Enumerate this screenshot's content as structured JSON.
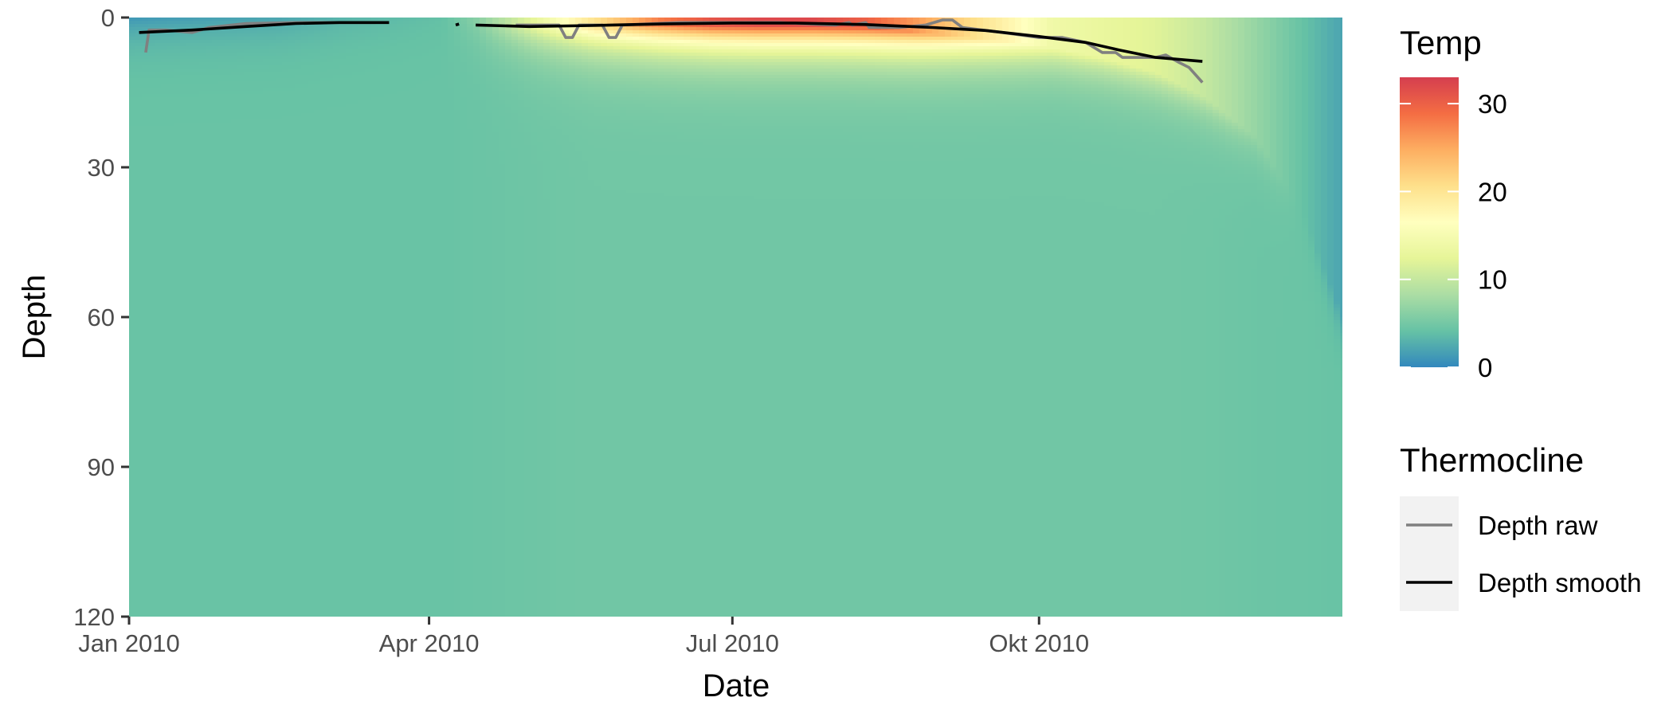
{
  "chart_data": {
    "type": "heatmap",
    "xlabel": "Date",
    "ylabel": "Depth",
    "x_ticks": [
      {
        "date": "2010-01-01",
        "label": "Jan 2010"
      },
      {
        "date": "2010-04-01",
        "label": "Apr 2010"
      },
      {
        "date": "2010-07-01",
        "label": "Jul 2010"
      },
      {
        "date": "2010-10-01",
        "label": "Okt 2010"
      }
    ],
    "xlim": [
      "2010-01-01",
      "2010-12-31"
    ],
    "y_ticks": [
      0,
      30,
      60,
      90,
      120
    ],
    "ylim": [
      0,
      120
    ],
    "y_reversed": true,
    "grid": false,
    "color_scale": {
      "title": "Temp",
      "ticks": [
        0,
        10,
        20,
        30
      ],
      "range": [
        0,
        33
      ],
      "palette": "Spectral (reversed)",
      "stops": [
        "#3288bd",
        "#66c2a5",
        "#abdda4",
        "#e6f598",
        "#ffffbf",
        "#fee08b",
        "#fdae61",
        "#f46d43",
        "#d53e4f"
      ]
    },
    "temperature_profile": {
      "dates": [
        "2010-01-01",
        "2010-01-20",
        "2010-02-15",
        "2010-03-05",
        "2010-03-20",
        "2010-04-05",
        "2010-04-15",
        "2010-05-01",
        "2010-05-20",
        "2010-06-10",
        "2010-06-25",
        "2010-07-10",
        "2010-07-25",
        "2010-08-10",
        "2010-08-25",
        "2010-09-10",
        "2010-09-25",
        "2010-10-05",
        "2010-10-20",
        "2010-11-05",
        "2010-11-20",
        "2010-12-05",
        "2010-12-20",
        "2010-12-31"
      ],
      "surface_temp": [
        1,
        1.5,
        2,
        3,
        3.5,
        4,
        6,
        12,
        20,
        28,
        31,
        32,
        32,
        30,
        26,
        21,
        17,
        14,
        13,
        12,
        10,
        7,
        4,
        2
      ],
      "deep_temp": [
        4.3,
        4.3,
        4.3,
        4.3,
        4.3,
        4.3,
        4.4,
        4.6,
        4.8,
        4.8,
        4.8,
        4.8,
        4.8,
        4.8,
        4.8,
        4.8,
        4.8,
        4.8,
        4.8,
        4.8,
        4.7,
        4.5,
        4.4,
        4.3
      ],
      "mixed_depth": [
        0,
        0,
        0,
        0,
        0,
        0,
        1,
        2,
        2,
        1.5,
        1.5,
        1.5,
        1.5,
        2,
        3,
        4,
        5,
        6,
        8,
        11,
        16,
        24,
        40,
        60
      ]
    },
    "series": [
      {
        "name": "Depth raw",
        "color": "#808080",
        "segments": [
          [
            [
              "2010-01-06",
              7
            ],
            [
              "2010-01-07",
              2.5
            ],
            [
              "2010-01-12",
              2.5
            ],
            [
              "2010-01-20",
              3
            ],
            [
              "2010-01-25",
              2
            ],
            [
              "2010-02-05",
              1.2
            ],
            [
              "2010-02-20",
              1
            ],
            [
              "2010-03-01",
              1
            ],
            [
              "2010-03-16",
              1
            ]
          ],
          [
            [
              "2010-04-27",
              1.5
            ],
            [
              "2010-05-10",
              1.5
            ],
            [
              "2010-05-12",
              4
            ],
            [
              "2010-05-14",
              4
            ],
            [
              "2010-05-16",
              1.5
            ],
            [
              "2010-05-23",
              1.5
            ],
            [
              "2010-05-25",
              4
            ],
            [
              "2010-05-27",
              4
            ],
            [
              "2010-05-29",
              1.5
            ],
            [
              "2010-06-15",
              1
            ],
            [
              "2010-07-15",
              1
            ],
            [
              "2010-08-01",
              1.5
            ],
            [
              "2010-08-05",
              1
            ],
            [
              "2010-08-06",
              1.5
            ],
            [
              "2010-08-10",
              1
            ],
            [
              "2010-08-11",
              2
            ],
            [
              "2010-08-20",
              2
            ],
            [
              "2010-08-28",
              1.5
            ],
            [
              "2010-09-02",
              0.5
            ],
            [
              "2010-09-05",
              0.5
            ],
            [
              "2010-09-08",
              2
            ],
            [
              "2010-09-20",
              3
            ],
            [
              "2010-10-01",
              4
            ],
            [
              "2010-10-08",
              4
            ],
            [
              "2010-10-15",
              5
            ],
            [
              "2010-10-20",
              7
            ],
            [
              "2010-10-24",
              7
            ],
            [
              "2010-10-26",
              8
            ],
            [
              "2010-11-05",
              8
            ],
            [
              "2010-11-08",
              7.5
            ],
            [
              "2010-11-12",
              9
            ],
            [
              "2010-11-15",
              10
            ],
            [
              "2010-11-19",
              13
            ]
          ]
        ]
      },
      {
        "name": "Depth smooth",
        "color": "#000000",
        "segments": [
          [
            [
              "2010-01-04",
              3
            ],
            [
              "2010-01-20",
              2.5
            ],
            [
              "2010-02-05",
              1.8
            ],
            [
              "2010-02-20",
              1.2
            ],
            [
              "2010-03-05",
              1
            ],
            [
              "2010-03-20",
              1
            ]
          ],
          [
            [
              "2010-04-09",
              1.5
            ],
            [
              "2010-04-10",
              1.3
            ]
          ],
          [
            [
              "2010-04-15",
              1.5
            ],
            [
              "2010-05-01",
              1.8
            ],
            [
              "2010-05-20",
              1.6
            ],
            [
              "2010-06-10",
              1.3
            ],
            [
              "2010-07-01",
              1.1
            ],
            [
              "2010-07-20",
              1.1
            ],
            [
              "2010-08-10",
              1.4
            ],
            [
              "2010-08-30",
              2
            ],
            [
              "2010-09-15",
              2.6
            ],
            [
              "2010-10-01",
              3.8
            ],
            [
              "2010-10-15",
              5
            ],
            [
              "2010-10-25",
              6.5
            ],
            [
              "2010-11-05",
              8
            ],
            [
              "2010-11-19",
              8.8
            ]
          ]
        ]
      }
    ],
    "legend": {
      "title": "Thermocline",
      "placement": "right",
      "entries": [
        "Depth raw",
        "Depth smooth"
      ]
    }
  }
}
